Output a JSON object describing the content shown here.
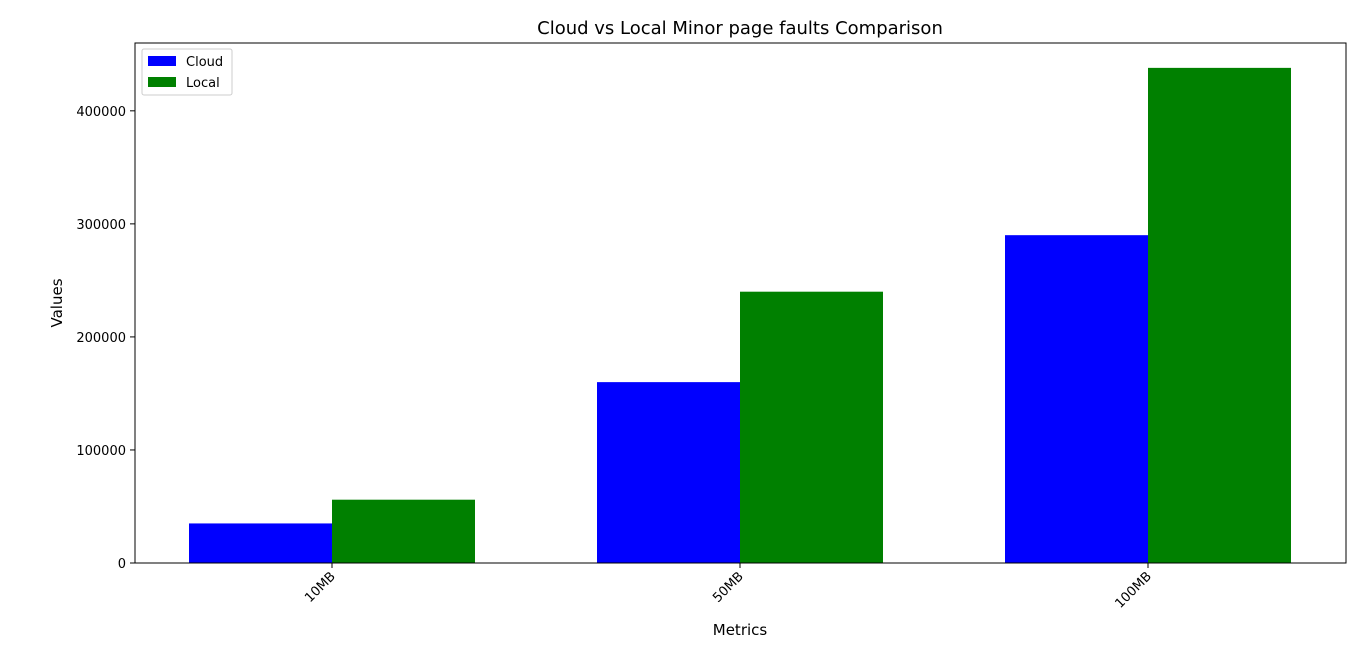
{
  "chart_data": {
    "type": "bar",
    "title": "Cloud vs Local Minor page faults Comparison",
    "xlabel": "Metrics",
    "ylabel": "Values",
    "categories": [
      "10MB",
      "50MB",
      "100MB"
    ],
    "series": [
      {
        "name": "Cloud",
        "color": "#0000ff",
        "values": [
          35000,
          160000,
          290000
        ]
      },
      {
        "name": "Local",
        "color": "#008000",
        "values": [
          56000,
          240000,
          438000
        ]
      }
    ],
    "ylim": [
      0,
      460000
    ],
    "yticks": [
      0,
      100000,
      200000,
      300000,
      400000
    ],
    "ytick_labels": [
      "0",
      "100000",
      "200000",
      "300000",
      "400000"
    ],
    "legend_position": "top-left",
    "grid": false
  }
}
